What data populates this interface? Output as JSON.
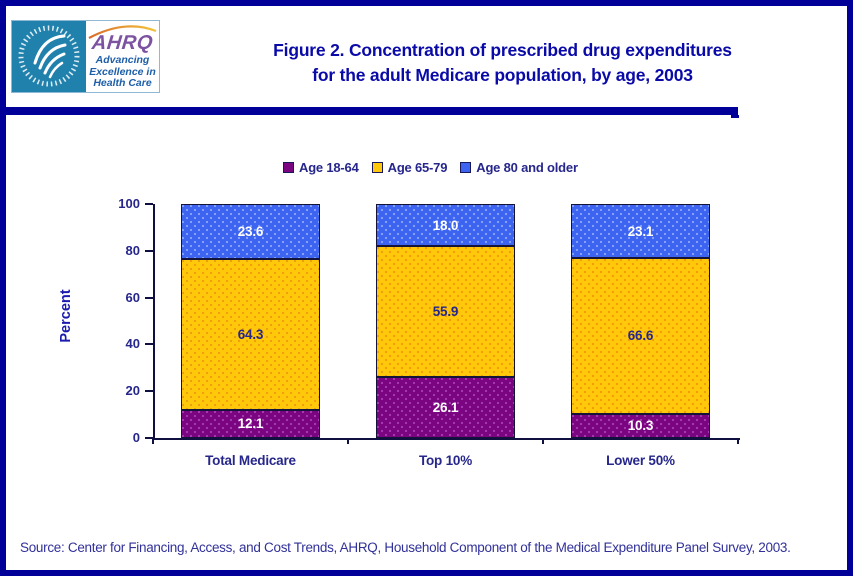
{
  "page": {
    "border_color": "#000099",
    "background_color": "#FFFFFF"
  },
  "logo": {
    "seal_name": "hhs-seal",
    "ahrq_acronym": "AHRQ",
    "tagline1": "Advancing",
    "tagline2": "Excellence in",
    "tagline3": "Health Care"
  },
  "header": {
    "title_line1": "Figure 2. Concentration of prescribed drug expenditures",
    "title_line2": "for the adult Medicare population, by age, 2003",
    "title_color": "#0A0AA8"
  },
  "chart_data": {
    "type": "bar",
    "stacked": true,
    "title": "Figure 2. Concentration of prescribed drug expenditures for the adult Medicare population, by age, 2003",
    "categories": [
      "Total Medicare",
      "Top 10%",
      "Lower 50%"
    ],
    "series": [
      {
        "name": "Age 18-64",
        "color": "#7B0581",
        "dot_color": "#A23DB0",
        "label_color": "#FFFFFF",
        "values": [
          12.1,
          26.1,
          10.3
        ]
      },
      {
        "name": "Age 65-79",
        "color": "#FFC80A",
        "dot_color": "#EE9D0C",
        "label_color": "#26268B",
        "values": [
          64.3,
          55.9,
          66.6
        ]
      },
      {
        "name": "Age 80 and older",
        "color": "#3C64F0",
        "dot_color": "#87A2F6",
        "label_color": "#FFFFFF",
        "values": [
          23.6,
          18.0,
          23.1
        ]
      }
    ],
    "xlabel": "",
    "ylabel": "Percent",
    "ylim": [
      0,
      100
    ],
    "yticks": [
      0,
      20,
      40,
      60,
      80,
      100
    ],
    "grid": false,
    "legend_position": "top",
    "value_decimals": 1
  },
  "footer": {
    "source": "Source: Center for Financing, Access, and Cost Trends, AHRQ, Household Component of the Medical Expenditure Panel Survey, 2003."
  }
}
